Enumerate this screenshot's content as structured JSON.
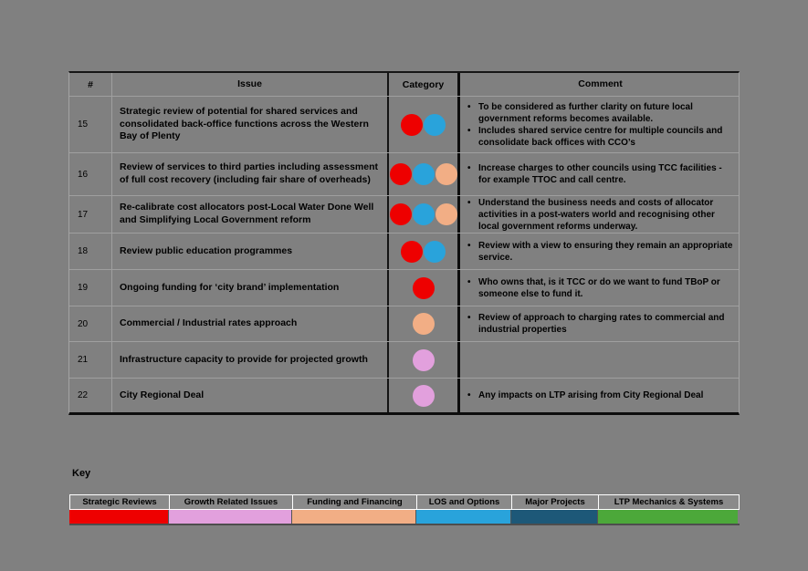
{
  "colors": {
    "page_background": "#808080",
    "text": "#000000"
  },
  "table": {
    "bullet": "•",
    "headers": {
      "num": "#",
      "issue": "Issue",
      "category": "Category",
      "comment": "Comment"
    },
    "rows": [
      {
        "num": "15",
        "issue": "Strategic review of potential for shared services and consolidated back-office functions across the Western Bay of Plenty",
        "categories": [
          "strategic-reviews",
          "los-and-options"
        ],
        "comments": [
          "To be considered as further clarity on future local government reforms becomes available.",
          "Includes shared service centre for multiple councils and consolidate back offices with CCO’s"
        ]
      },
      {
        "num": "16",
        "issue": "Review of services to third parties including assessment of full cost recovery (including fair share of overheads)",
        "categories": [
          "strategic-reviews",
          "los-and-options",
          "funding-and-financing"
        ],
        "comments": [
          "Increase charges to other councils using TCC facilities - for example TTOC and call centre."
        ]
      },
      {
        "num": "17",
        "issue": "Re-calibrate cost allocators post-Local Water Done Well and Simplifying Local Government reform",
        "categories": [
          "strategic-reviews",
          "los-and-options",
          "funding-and-financing"
        ],
        "comments": [
          "Understand the business needs and costs of allocator activities in a post-waters world and recognising other local government reforms underway."
        ]
      },
      {
        "num": "18",
        "issue": "Review public education programmes",
        "categories": [
          "strategic-reviews",
          "los-and-options"
        ],
        "comments": [
          "Review with a view to ensuring they remain an appropriate service."
        ]
      },
      {
        "num": "19",
        "issue": "Ongoing funding for ‘city brand’ implementation",
        "categories": [
          "strategic-reviews"
        ],
        "comments": [
          "Who owns that, is it TCC or do we want to fund TBoP or someone else to fund it."
        ]
      },
      {
        "num": "20",
        "issue": "Commercial / Industrial rates approach",
        "categories": [
          "funding-and-financing"
        ],
        "comments": [
          "Review of approach to charging rates to commercial and industrial properties"
        ]
      },
      {
        "num": "21",
        "issue": "Infrastructure capacity to provide for projected growth",
        "categories": [
          "growth-related-issues"
        ],
        "comments": []
      },
      {
        "num": "22",
        "issue": "City Regional Deal",
        "categories": [
          "growth-related-issues"
        ],
        "comments": [
          "Any impacts on LTP arising from City Regional Deal"
        ]
      }
    ]
  },
  "key": {
    "title": "Key",
    "items": [
      {
        "id": "strategic-reviews",
        "label": "Strategic Reviews",
        "color": "#EE0000"
      },
      {
        "id": "growth-related-issues",
        "label": "Growth Related Issues",
        "color": "#E2A0DD"
      },
      {
        "id": "funding-and-financing",
        "label": "Funding and Financing",
        "color": "#F2AE85"
      },
      {
        "id": "los-and-options",
        "label": "LOS and Options",
        "color": "#29A3DB"
      },
      {
        "id": "major-projects",
        "label": "Major Projects",
        "color": "#1D5878"
      },
      {
        "id": "ltp-mechanics-systems",
        "label": "LTP Mechanics & Systems",
        "color": "#4CA83A"
      }
    ]
  }
}
